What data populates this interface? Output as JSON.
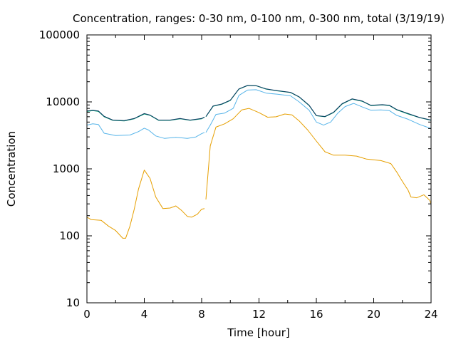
{
  "chart_data": {
    "type": "line",
    "title": "Concentration, ranges: 0-30 nm, 0-100 nm, 0-300 nm, total (3/19/19)",
    "xlabel": "Time [hour]",
    "ylabel": "Concentration",
    "xlim": [
      0,
      24
    ],
    "ylim": [
      10,
      100000
    ],
    "yscale": "log",
    "grid": false,
    "x_ticks": [
      "0",
      "4",
      "8",
      "12",
      "16",
      "20",
      "24"
    ],
    "y_ticks": [
      "10",
      "100",
      "1000",
      "10000",
      "100000"
    ],
    "series": [
      {
        "color": "#e69f00",
        "segments": [
          [
            [
              0,
              190
            ],
            [
              0.3,
              175
            ],
            [
              1,
              170
            ],
            [
              1.5,
              140
            ],
            [
              2,
              120
            ],
            [
              2.5,
              92
            ],
            [
              2.7,
              92
            ],
            [
              3,
              140
            ],
            [
              3.3,
              250
            ],
            [
              3.6,
              500
            ],
            [
              4,
              960
            ],
            [
              4.4,
              720
            ],
            [
              4.8,
              380
            ],
            [
              5.3,
              255
            ],
            [
              5.8,
              260
            ],
            [
              6.2,
              280
            ],
            [
              6.6,
              240
            ],
            [
              7,
              195
            ],
            [
              7.3,
              190
            ],
            [
              7.7,
              210
            ],
            [
              8,
              250
            ],
            [
              8.2,
              255
            ]
          ],
          [
            [
              8.3,
              350
            ],
            [
              8.6,
              2200
            ],
            [
              9,
              4200
            ],
            [
              9.6,
              4700
            ],
            [
              10.2,
              5600
            ],
            [
              10.8,
              7600
            ],
            [
              11.3,
              8000
            ],
            [
              12,
              6900
            ],
            [
              12.6,
              5900
            ],
            [
              13.2,
              6000
            ],
            [
              13.8,
              6600
            ],
            [
              14.3,
              6400
            ],
            [
              14.8,
              5200
            ],
            [
              15.4,
              3800
            ],
            [
              16,
              2600
            ],
            [
              16.6,
              1800
            ],
            [
              17.2,
              1600
            ],
            [
              18,
              1600
            ],
            [
              18.8,
              1550
            ],
            [
              19.5,
              1400
            ],
            [
              20.5,
              1330
            ],
            [
              21.2,
              1200
            ],
            [
              21.6,
              900
            ],
            [
              22,
              650
            ],
            [
              22.4,
              480
            ],
            [
              22.6,
              380
            ],
            [
              23,
              370
            ],
            [
              23.5,
              410
            ],
            [
              23.9,
              340
            ],
            [
              24,
              300
            ]
          ]
        ]
      },
      {
        "color": "#56b4e9",
        "segments": [
          [
            [
              0,
              4500
            ],
            [
              0.4,
              4700
            ],
            [
              0.8,
              4600
            ],
            [
              1.2,
              3400
            ],
            [
              2,
              3150
            ],
            [
              3,
              3200
            ],
            [
              3.6,
              3600
            ],
            [
              4,
              4050
            ],
            [
              4.3,
              3800
            ],
            [
              4.8,
              3100
            ],
            [
              5.4,
              2850
            ],
            [
              6.2,
              2950
            ],
            [
              7,
              2850
            ],
            [
              7.6,
              3000
            ],
            [
              8,
              3350
            ],
            [
              8.2,
              3500
            ]
          ],
          [
            [
              8.3,
              3500
            ],
            [
              8.6,
              4500
            ],
            [
              9,
              6500
            ],
            [
              9.6,
              6800
            ],
            [
              10.2,
              8000
            ],
            [
              10.6,
              12500
            ],
            [
              11.2,
              15000
            ],
            [
              11.8,
              15200
            ],
            [
              12.5,
              13500
            ],
            [
              13.3,
              13000
            ],
            [
              14.2,
              12300
            ],
            [
              14.8,
              10000
            ],
            [
              15.5,
              7500
            ],
            [
              16,
              5000
            ],
            [
              16.5,
              4500
            ],
            [
              17,
              5000
            ],
            [
              17.5,
              6800
            ],
            [
              18,
              8500
            ],
            [
              18.6,
              9500
            ],
            [
              19.2,
              8400
            ],
            [
              19.8,
              7500
            ],
            [
              20.5,
              7600
            ],
            [
              21.1,
              7400
            ],
            [
              21.6,
              6300
            ],
            [
              22.4,
              5500
            ],
            [
              23.2,
              4600
            ],
            [
              24,
              4000
            ]
          ]
        ]
      },
      {
        "color": "#009e73",
        "segments": [
          [
            [
              0,
              7200
            ],
            [
              0.4,
              7400
            ],
            [
              0.8,
              7200
            ],
            [
              1.2,
              6000
            ],
            [
              1.8,
              5300
            ],
            [
              2.6,
              5200
            ],
            [
              3.3,
              5600
            ],
            [
              4,
              6600
            ],
            [
              4.4,
              6300
            ],
            [
              5,
              5300
            ],
            [
              5.8,
              5300
            ],
            [
              6.5,
              5600
            ],
            [
              7.2,
              5300
            ],
            [
              8,
              5600
            ],
            [
              8.2,
              5900
            ]
          ],
          [
            [
              8.3,
              6000
            ],
            [
              8.8,
              8600
            ],
            [
              9.4,
              9200
            ],
            [
              10,
              10500
            ],
            [
              10.6,
              15500
            ],
            [
              11.2,
              17500
            ],
            [
              11.8,
              17400
            ],
            [
              12.5,
              15500
            ],
            [
              13.3,
              14600
            ],
            [
              14.2,
              13800
            ],
            [
              14.8,
              11800
            ],
            [
              15.5,
              8800
            ],
            [
              16,
              6200
            ],
            [
              16.6,
              6000
            ],
            [
              17.2,
              6900
            ],
            [
              17.8,
              9300
            ],
            [
              18.5,
              11000
            ],
            [
              19.2,
              10200
            ],
            [
              19.8,
              8800
            ],
            [
              20.6,
              9000
            ],
            [
              21.1,
              8800
            ],
            [
              21.6,
              7600
            ],
            [
              22.4,
              6600
            ],
            [
              23.2,
              5800
            ],
            [
              24,
              5300
            ]
          ]
        ]
      },
      {
        "color": "#0a3760",
        "segments": [
          [
            [
              0,
              7300
            ],
            [
              0.4,
              7500
            ],
            [
              0.8,
              7300
            ],
            [
              1.2,
              6100
            ],
            [
              1.8,
              5350
            ],
            [
              2.6,
              5250
            ],
            [
              3.3,
              5650
            ],
            [
              4,
              6700
            ],
            [
              4.4,
              6350
            ],
            [
              5,
              5350
            ],
            [
              5.8,
              5350
            ],
            [
              6.5,
              5650
            ],
            [
              7.2,
              5350
            ],
            [
              8,
              5650
            ],
            [
              8.2,
              5950
            ]
          ],
          [
            [
              8.3,
              6050
            ],
            [
              8.8,
              8700
            ],
            [
              9.4,
              9300
            ],
            [
              10,
              10600
            ],
            [
              10.6,
              15600
            ],
            [
              11.2,
              17600
            ],
            [
              11.8,
              17500
            ],
            [
              12.5,
              15600
            ],
            [
              13.3,
              14700
            ],
            [
              14.2,
              13900
            ],
            [
              14.8,
              11900
            ],
            [
              15.5,
              8900
            ],
            [
              16,
              6250
            ],
            [
              16.6,
              6050
            ],
            [
              17.2,
              7000
            ],
            [
              17.8,
              9400
            ],
            [
              18.5,
              11100
            ],
            [
              19.2,
              10300
            ],
            [
              19.8,
              8900
            ],
            [
              20.6,
              9100
            ],
            [
              21.1,
              8900
            ],
            [
              21.6,
              7700
            ],
            [
              22.4,
              6700
            ],
            [
              23.2,
              5850
            ],
            [
              24,
              5350
            ]
          ]
        ]
      }
    ]
  }
}
